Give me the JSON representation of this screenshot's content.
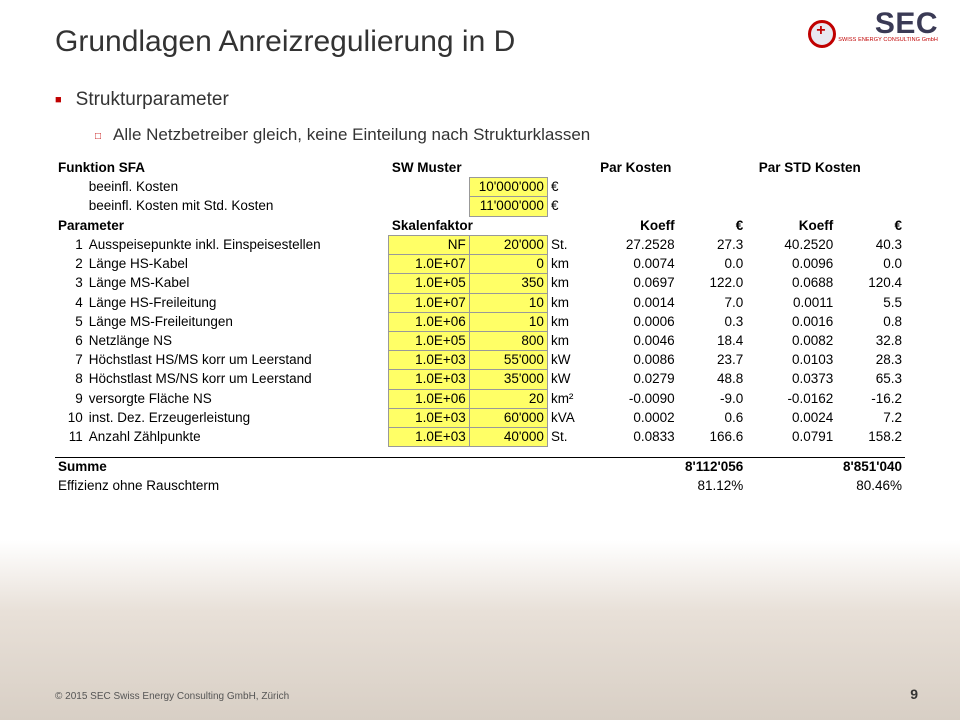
{
  "page": {
    "title": "Grundlagen Anreizregulierung in D",
    "bullet1": "Strukturparameter",
    "bullet2": "Alle Netzbetreiber gleich, keine Einteilung nach Strukturklassen",
    "pagenum": "9",
    "copyright": "© 2015 SEC Swiss Energy Consulting GmbH, Zürich"
  },
  "logo": {
    "main": "SEC",
    "sub": "SWISS ENERGY CONSULTING GmbH"
  },
  "table": {
    "h_funktion": "Funktion SFA",
    "h_sw": "SW Muster",
    "h_pk": "Par Kosten",
    "h_psk": "Par STD Kosten",
    "r_beeinfl1_l": "beeinfl. Kosten",
    "r_beeinfl1_v": "10'000'000",
    "r_beeinfl1_u": "€",
    "r_beeinfl2_l": "beeinfl. Kosten mit Std. Kosten",
    "r_beeinfl2_v": "11'000'000",
    "r_beeinfl2_u": "€",
    "h_param": "Parameter",
    "h_skal": "Skalenfaktor",
    "h_koeff": "Koeff",
    "h_eur": "€",
    "rows": [
      {
        "n": "1",
        "l": "Ausspeisepunkte inkl. Einspeisestellen",
        "sf": "NF",
        "v": "20'000",
        "u": "St.",
        "k1": "27.2528",
        "e1": "27.3",
        "k2": "40.2520",
        "e2": "40.3"
      },
      {
        "n": "2",
        "l": "Länge HS-Kabel",
        "sf": "1.0E+07",
        "v": "0",
        "u": "km",
        "k1": "0.0074",
        "e1": "0.0",
        "k2": "0.0096",
        "e2": "0.0"
      },
      {
        "n": "3",
        "l": "Länge MS-Kabel",
        "sf": "1.0E+05",
        "v": "350",
        "u": "km",
        "k1": "0.0697",
        "e1": "122.0",
        "k2": "0.0688",
        "e2": "120.4"
      },
      {
        "n": "4",
        "l": "Länge HS-Freileitung",
        "sf": "1.0E+07",
        "v": "10",
        "u": "km",
        "k1": "0.0014",
        "e1": "7.0",
        "k2": "0.0011",
        "e2": "5.5"
      },
      {
        "n": "5",
        "l": "Länge MS-Freileitungen",
        "sf": "1.0E+06",
        "v": "10",
        "u": "km",
        "k1": "0.0006",
        "e1": "0.3",
        "k2": "0.0016",
        "e2": "0.8"
      },
      {
        "n": "6",
        "l": "Netzlänge NS",
        "sf": "1.0E+05",
        "v": "800",
        "u": "km",
        "k1": "0.0046",
        "e1": "18.4",
        "k2": "0.0082",
        "e2": "32.8"
      },
      {
        "n": "7",
        "l": "Höchstlast HS/MS korr um Leerstand",
        "sf": "1.0E+03",
        "v": "55'000",
        "u": "kW",
        "k1": "0.0086",
        "e1": "23.7",
        "k2": "0.0103",
        "e2": "28.3"
      },
      {
        "n": "8",
        "l": "Höchstlast MS/NS korr um Leerstand",
        "sf": "1.0E+03",
        "v": "35'000",
        "u": "kW",
        "k1": "0.0279",
        "e1": "48.8",
        "k2": "0.0373",
        "e2": "65.3"
      },
      {
        "n": "9",
        "l": "versorgte Fläche NS",
        "sf": "1.0E+06",
        "v": "20",
        "u": "km²",
        "k1": "-0.0090",
        "e1": "-9.0",
        "k2": "-0.0162",
        "e2": "-16.2"
      },
      {
        "n": "10",
        "l": "inst. Dez. Erzeugerleistung",
        "sf": "1.0E+03",
        "v": "60'000",
        "u": "kVA",
        "k1": "0.0002",
        "e1": "0.6",
        "k2": "0.0024",
        "e2": "7.2"
      },
      {
        "n": "11",
        "l": "Anzahl Zählpunkte",
        "sf": "1.0E+03",
        "v": "40'000",
        "u": "St.",
        "k1": "0.0833",
        "e1": "166.6",
        "k2": "0.0791",
        "e2": "158.2"
      }
    ],
    "sum_l": "Summe",
    "sum_v1": "8'112'056",
    "sum_v2": "8'851'040",
    "eff_l": "Effizienz ohne Rauschterm",
    "eff_v1": "81.12%",
    "eff_v2": "80.46%"
  },
  "cols": {
    "n": 26,
    "l": 256,
    "sf": 68,
    "v": 66,
    "u": 34,
    "gap": 8,
    "k1": 68,
    "e1": 58,
    "gap2": 8,
    "k2": 68,
    "e2": 58
  }
}
